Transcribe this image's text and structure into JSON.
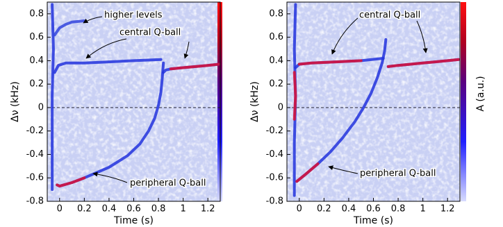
{
  "chart_data": [
    {
      "type": "line",
      "xlabel": "Time (s)",
      "ylabel": "Δν (kHz)",
      "xlim": [
        -0.1,
        1.3
      ],
      "ylim": [
        -0.8,
        0.9
      ],
      "xticks": [
        0,
        0.2,
        0.4,
        0.6,
        0.8,
        1,
        1.2
      ],
      "yticks": [
        -0.8,
        -0.6,
        -0.4,
        -0.2,
        0,
        0.2,
        0.4,
        0.6,
        0.8
      ],
      "hline": 0,
      "annotations": [
        "higher levels",
        "central Q-ball",
        "peripheral Q-ball"
      ],
      "series": [
        {
          "color": "#2233dd",
          "x": [
            -0.06,
            -0.06,
            -0.06,
            -0.05,
            -0.06
          ],
          "values": [
            -0.7,
            -0.3,
            0.1,
            0.5,
            0.88
          ]
        },
        {
          "color": "#3344dd",
          "x": [
            -0.04,
            0,
            0.05,
            0.1,
            0.2
          ],
          "values": [
            0.62,
            0.68,
            0.71,
            0.73,
            0.74
          ]
        },
        {
          "color": "#2233dd",
          "x": [
            -0.04,
            -0.01,
            0.05,
            0.2,
            0.4,
            0.6,
            0.82
          ],
          "values": [
            0.3,
            0.36,
            0.38,
            0.38,
            0.39,
            0.4,
            0.41
          ]
        },
        {
          "color": "#2233dd",
          "x": [
            -0.02,
            0,
            0.1,
            0.2,
            0.4,
            0.55,
            0.65,
            0.72,
            0.77,
            0.8,
            0.82,
            0.83,
            0.84
          ],
          "values": [
            -0.66,
            -0.67,
            -0.64,
            -0.6,
            -0.51,
            -0.41,
            -0.31,
            -0.2,
            -0.09,
            0.02,
            0.13,
            0.24,
            0.38
          ]
        },
        {
          "color": "#dd1133",
          "x": [
            -0.02,
            0,
            0.1,
            0.2
          ],
          "values": [
            -0.66,
            -0.67,
            -0.64,
            -0.6
          ]
        },
        {
          "color": "#2233dd",
          "x": [
            0.84,
            0.86,
            0.9,
            1,
            1.1,
            1.2,
            1.29
          ],
          "values": [
            0.3,
            0.32,
            0.33,
            0.34,
            0.35,
            0.36,
            0.37
          ]
        },
        {
          "color": "#dd1133",
          "x": [
            0.9,
            1,
            1.1,
            1.2,
            1.29
          ],
          "values": [
            0.33,
            0.34,
            0.35,
            0.36,
            0.37
          ]
        }
      ]
    },
    {
      "type": "line",
      "xlabel": "Time (s)",
      "ylabel": "Δν (kHz)",
      "colorbar_label": "A (a.u.)",
      "xlim": [
        -0.1,
        1.3
      ],
      "ylim": [
        -0.8,
        0.9
      ],
      "xticks": [
        0,
        0.2,
        0.4,
        0.6,
        0.8,
        1,
        1.2
      ],
      "yticks": [
        -0.8,
        -0.6,
        -0.4,
        -0.2,
        0,
        0.2,
        0.4,
        0.6,
        0.8
      ],
      "hline": 0,
      "annotations": [
        "central Q-ball",
        "peripheral Q-ball"
      ],
      "series": [
        {
          "color": "#2233dd",
          "x": [
            -0.04,
            -0.04,
            -0.03,
            -0.04,
            -0.03
          ],
          "values": [
            -0.75,
            -0.3,
            0.1,
            0.5,
            0.88
          ]
        },
        {
          "color": "#dd1133",
          "x": [
            -0.04,
            -0.03,
            -0.04
          ],
          "values": [
            -0.1,
            0.1,
            0.3
          ]
        },
        {
          "color": "#2233dd",
          "x": [
            -0.03,
            0,
            0.1,
            0.3,
            0.5,
            0.68
          ],
          "values": [
            0.34,
            0.37,
            0.38,
            0.39,
            0.4,
            0.42
          ]
        },
        {
          "color": "#dd1133",
          "x": [
            0,
            0.1,
            0.3,
            0.5
          ],
          "values": [
            0.37,
            0.38,
            0.39,
            0.4
          ]
        },
        {
          "color": "#2233dd",
          "x": [
            -0.02,
            0.05,
            0.15,
            0.25,
            0.35,
            0.45,
            0.52,
            0.58,
            0.63,
            0.67,
            0.69,
            0.7
          ],
          "values": [
            -0.63,
            -0.57,
            -0.48,
            -0.38,
            -0.26,
            -0.12,
            0.0,
            0.12,
            0.25,
            0.38,
            0.48,
            0.58
          ]
        },
        {
          "color": "#dd1133",
          "x": [
            -0.02,
            0.05,
            0.15
          ],
          "values": [
            -0.63,
            -0.57,
            -0.48
          ]
        },
        {
          "color": "#2233dd",
          "x": [
            0.72,
            0.8,
            0.9,
            1,
            1.1,
            1.2,
            1.29
          ],
          "values": [
            0.35,
            0.36,
            0.37,
            0.38,
            0.39,
            0.4,
            0.41
          ]
        },
        {
          "color": "#dd1133",
          "x": [
            0.72,
            0.8,
            0.9,
            1,
            1.1,
            1.2,
            1.29
          ],
          "values": [
            0.35,
            0.36,
            0.37,
            0.38,
            0.39,
            0.4,
            0.41
          ]
        }
      ]
    }
  ]
}
